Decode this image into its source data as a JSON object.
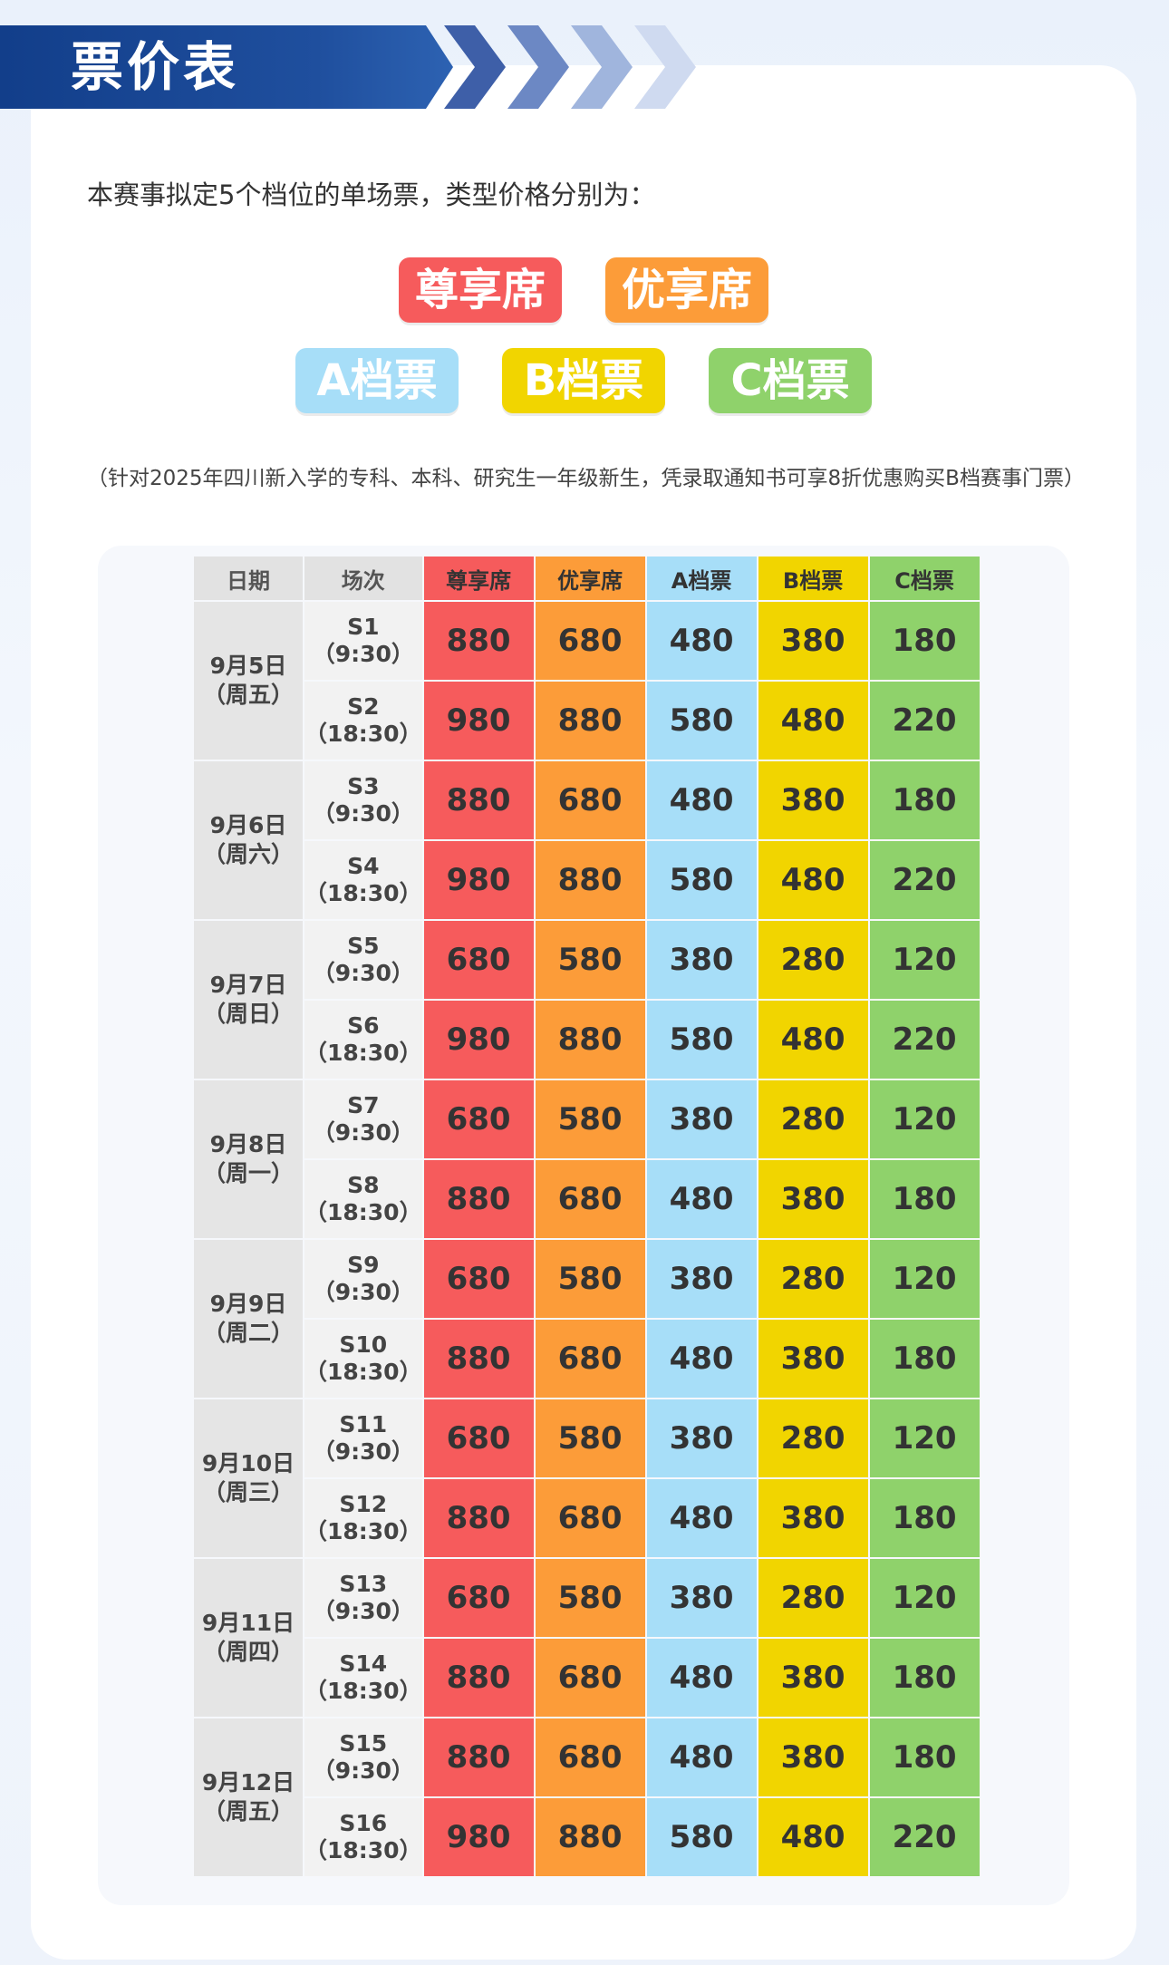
{
  "header": {
    "title": "票价表"
  },
  "colors": {
    "banner": "#123e8a",
    "chevrons": [
      "#3e5fa8",
      "#6c88c4",
      "#a0b5dd",
      "#cfdaf0"
    ],
    "tiers": [
      "#f65b5c",
      "#fc9c39",
      "#a7def8",
      "#f1d500",
      "#8fd26b"
    ],
    "tier_headers": [
      "#f65b5c",
      "#fc9c39",
      "#a7def8",
      "#f1d500",
      "#8fd26b"
    ]
  },
  "intro": "本赛事拟定5个档位的单场票，类型价格分别为：",
  "tiers": [
    "尊享席",
    "优享席",
    "A档票",
    "B档票",
    "C档票"
  ],
  "note": "（针对2025年四川新入学的专科、本科、研究生一年级新生，凭录取通知书可享8折优惠购买B档赛事门票）",
  "table": {
    "headers": [
      "日期",
      "场次",
      "尊享席",
      "优享席",
      "A档票",
      "B档票",
      "C档票"
    ],
    "days": [
      {
        "date": "9月5日",
        "weekday": "（周五）",
        "sessions": [
          {
            "name": "S1",
            "time": "（9:30）",
            "prices": [
              "880",
              "680",
              "480",
              "380",
              "180"
            ]
          },
          {
            "name": "S2",
            "time": "（18:30）",
            "prices": [
              "980",
              "880",
              "580",
              "480",
              "220"
            ]
          }
        ]
      },
      {
        "date": "9月6日",
        "weekday": "（周六）",
        "sessions": [
          {
            "name": "S3",
            "time": "（9:30）",
            "prices": [
              "880",
              "680",
              "480",
              "380",
              "180"
            ]
          },
          {
            "name": "S4",
            "time": "（18:30）",
            "prices": [
              "980",
              "880",
              "580",
              "480",
              "220"
            ]
          }
        ]
      },
      {
        "date": "9月7日",
        "weekday": "（周日）",
        "sessions": [
          {
            "name": "S5",
            "time": "（9:30）",
            "prices": [
              "680",
              "580",
              "380",
              "280",
              "120"
            ]
          },
          {
            "name": "S6",
            "time": "（18:30）",
            "prices": [
              "980",
              "880",
              "580",
              "480",
              "220"
            ]
          }
        ]
      },
      {
        "date": "9月8日",
        "weekday": "（周一）",
        "sessions": [
          {
            "name": "S7",
            "time": "（9:30）",
            "prices": [
              "680",
              "580",
              "380",
              "280",
              "120"
            ]
          },
          {
            "name": "S8",
            "time": "（18:30）",
            "prices": [
              "880",
              "680",
              "480",
              "380",
              "180"
            ]
          }
        ]
      },
      {
        "date": "9月9日",
        "weekday": "（周二）",
        "sessions": [
          {
            "name": "S9",
            "time": "（9:30）",
            "prices": [
              "680",
              "580",
              "380",
              "280",
              "120"
            ]
          },
          {
            "name": "S10",
            "time": "（18:30）",
            "prices": [
              "880",
              "680",
              "480",
              "380",
              "180"
            ]
          }
        ]
      },
      {
        "date": "9月10日",
        "weekday": "（周三）",
        "sessions": [
          {
            "name": "S11",
            "time": "（9:30）",
            "prices": [
              "680",
              "580",
              "380",
              "280",
              "120"
            ]
          },
          {
            "name": "S12",
            "time": "（18:30）",
            "prices": [
              "880",
              "680",
              "480",
              "380",
              "180"
            ]
          }
        ]
      },
      {
        "date": "9月11日",
        "weekday": "（周四）",
        "sessions": [
          {
            "name": "S13",
            "time": "（9:30）",
            "prices": [
              "680",
              "580",
              "380",
              "280",
              "120"
            ]
          },
          {
            "name": "S14",
            "time": "（18:30）",
            "prices": [
              "880",
              "680",
              "480",
              "380",
              "180"
            ]
          }
        ]
      },
      {
        "date": "9月12日",
        "weekday": "（周五）",
        "sessions": [
          {
            "name": "S15",
            "time": "（9:30）",
            "prices": [
              "880",
              "680",
              "480",
              "380",
              "180"
            ]
          },
          {
            "name": "S16",
            "time": "（18:30）",
            "prices": [
              "980",
              "880",
              "580",
              "480",
              "220"
            ]
          }
        ]
      }
    ]
  }
}
